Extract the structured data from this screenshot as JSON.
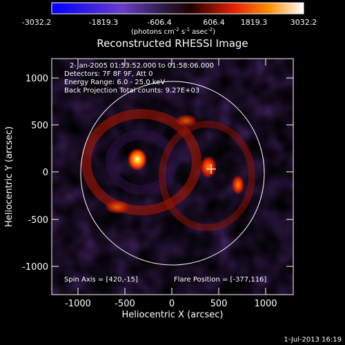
{
  "colorbar": {
    "ticks": [
      "-3032.2",
      "-1819.3",
      "-606.4",
      "606.4",
      "1819.3",
      "3032.2"
    ],
    "units_main": "(photons cm",
    "units_sup1": "-2",
    "units_mid": " s",
    "units_sup2": "-1",
    "units_end": " asec",
    "units_sup3": "-2",
    "units_close": ")",
    "stops": [
      "#0000ff",
      "#6a3cc8",
      "#2a1a40",
      "#200000",
      "#e02000",
      "#ff8c00",
      "#ffffff"
    ]
  },
  "plot": {
    "title": "Reconstructed RHESSI Image",
    "info_lines": [
      "2-Jan-2005 01:53:52.000 to 01:58:06.000",
      "Detectors: 7F 8F 9F, Att 0",
      "Energy Range: 6.0 - 25.0 keV",
      "Back Projection    Total counts: 9.27E+03"
    ],
    "spin_axis": "Spin Axis = [420,-15]",
    "flare_position": "Flare Position = [-377,116]",
    "xlabel": "Heliocentric X (arcsec)",
    "ylabel": "Heliocentric Y (arcsec)",
    "xticks": [
      "-1000",
      "-500",
      "0",
      "500",
      "1000"
    ],
    "yticks": [
      "1000",
      "500",
      "0",
      "-500",
      "-1000"
    ]
  },
  "footer": {
    "date": "1-Jul-2013 16:19"
  }
}
